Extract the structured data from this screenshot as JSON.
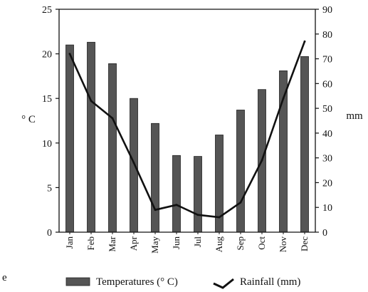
{
  "chart_data": {
    "type": "bar+line",
    "categories": [
      "Jan",
      "Feb",
      "Mar",
      "Apr",
      "May",
      "Jun",
      "Jul",
      "Aug",
      "Sep",
      "Oct",
      "Nov",
      "Dec"
    ],
    "series": [
      {
        "name": "Temperatures (° C)",
        "type": "bar",
        "axis": "left",
        "values": [
          21.0,
          21.3,
          18.9,
          15.0,
          12.2,
          8.6,
          8.5,
          10.9,
          13.7,
          16.0,
          18.1,
          19.7
        ]
      },
      {
        "name": "Rainfall (mm)",
        "type": "line",
        "axis": "right",
        "values": [
          72,
          53,
          46,
          28,
          9,
          11,
          7,
          6,
          12,
          29,
          54,
          77
        ]
      }
    ],
    "y_left": {
      "label": "° C",
      "ylim": [
        0,
        25
      ],
      "ticks": [
        0,
        5,
        10,
        15,
        20,
        25
      ]
    },
    "y_right": {
      "label": "mm",
      "ylim": [
        0,
        90
      ],
      "ticks": [
        0,
        10,
        20,
        30,
        40,
        50,
        60,
        70,
        80,
        90
      ]
    },
    "grid": false,
    "legend_position": "bottom",
    "colors": {
      "bar": "#555555",
      "line": "#111111",
      "axis": "#111111"
    }
  },
  "page": {
    "edge_letter": "e"
  }
}
